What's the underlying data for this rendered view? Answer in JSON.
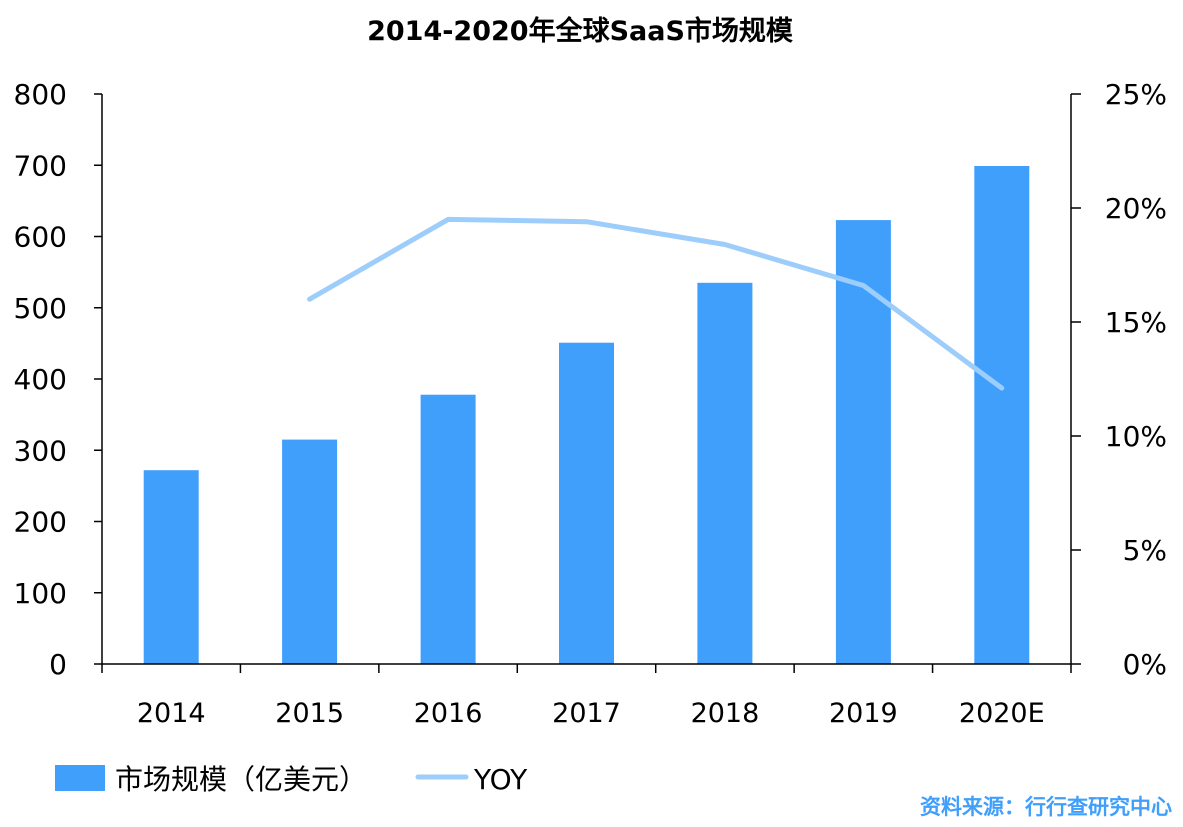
{
  "chart_data": {
    "type": "bar",
    "title": "2014-2020年全球SaaS市场规模",
    "categories": [
      "2014",
      "2015",
      "2016",
      "2017",
      "2018",
      "2019",
      "2020E"
    ],
    "series": [
      {
        "name": "市场规模（亿美元）",
        "type": "bar",
        "axis": "left",
        "color": "#419ffc",
        "values": [
          272,
          315,
          378,
          451,
          535,
          623,
          699
        ]
      },
      {
        "name": "YOY",
        "type": "line",
        "axis": "right",
        "color": "#9dcdfa",
        "values": [
          null,
          16.0,
          19.5,
          19.4,
          18.4,
          16.6,
          12.1
        ]
      }
    ],
    "y_left": {
      "ylim": [
        0,
        800
      ],
      "ticks": [
        "0",
        "100",
        "200",
        "300",
        "400",
        "500",
        "600",
        "700",
        "800"
      ]
    },
    "y_right": {
      "ylim": [
        0,
        25
      ],
      "unit": "%",
      "ticks": [
        "0%",
        "5%",
        "10%",
        "15%",
        "20%",
        "25%"
      ]
    },
    "grid": false,
    "legend_position": "bottom-left",
    "source": "资料来源：行行查研究中心",
    "source_color": "#419ffc"
  }
}
